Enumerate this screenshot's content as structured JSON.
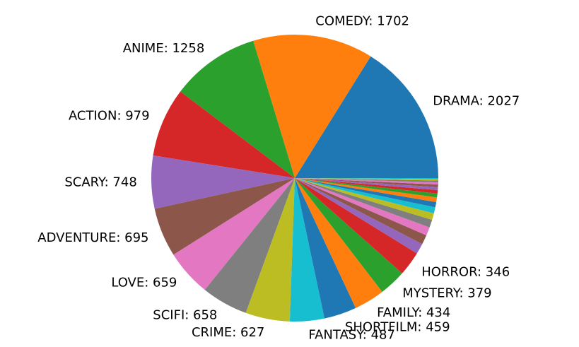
{
  "chart_data": {
    "type": "pie",
    "start_angle_deg": 0,
    "direction": "counterclockwise",
    "slices": [
      {
        "label": "DRAMA",
        "value": 2027,
        "color": "#1f77b4",
        "show_label": true
      },
      {
        "label": "COMEDY",
        "value": 1702,
        "color": "#ff7f0e",
        "show_label": true
      },
      {
        "label": "ANIME",
        "value": 1258,
        "color": "#2ca02c",
        "show_label": true
      },
      {
        "label": "ACTION",
        "value": 979,
        "color": "#d62728",
        "show_label": true
      },
      {
        "label": "SCARY",
        "value": 748,
        "color": "#9467bd",
        "show_label": true
      },
      {
        "label": "ADVENTURE",
        "value": 695,
        "color": "#8c564b",
        "show_label": true
      },
      {
        "label": "LOVE",
        "value": 659,
        "color": "#e377c2",
        "show_label": true
      },
      {
        "label": "SCIFI",
        "value": 658,
        "color": "#7f7f7f",
        "show_label": true
      },
      {
        "label": "CRIME",
        "value": 627,
        "color": "#bcbd22",
        "show_label": true
      },
      {
        "label": "FANTASY",
        "value": 487,
        "color": "#17becf",
        "show_label": true
      },
      {
        "label": "SHORTFILM",
        "value": 459,
        "color": "#1f77b4",
        "show_label": true
      },
      {
        "label": "FAMILY",
        "value": 434,
        "color": "#ff7f0e",
        "show_label": true
      },
      {
        "label": "MYSTERY",
        "value": 379,
        "color": "#2ca02c",
        "show_label": true
      },
      {
        "label": "HORROR",
        "value": 346,
        "color": "#d62728",
        "show_label": true
      },
      {
        "value": 150,
        "color": "#9467bd",
        "show_label": false
      },
      {
        "value": 135,
        "color": "#8c564b",
        "show_label": false
      },
      {
        "value": 120,
        "color": "#e377c2",
        "show_label": false
      },
      {
        "value": 110,
        "color": "#7f7f7f",
        "show_label": false
      },
      {
        "value": 95,
        "color": "#bcbd22",
        "show_label": false
      },
      {
        "value": 85,
        "color": "#17becf",
        "show_label": false
      },
      {
        "value": 75,
        "color": "#1f77b4",
        "show_label": false
      },
      {
        "value": 65,
        "color": "#ff7f0e",
        "show_label": false
      },
      {
        "value": 55,
        "color": "#2ca02c",
        "show_label": false
      },
      {
        "value": 48,
        "color": "#d62728",
        "show_label": false
      },
      {
        "value": 42,
        "color": "#9467bd",
        "show_label": false
      },
      {
        "value": 36,
        "color": "#8c564b",
        "show_label": false
      },
      {
        "value": 30,
        "color": "#e377c2",
        "show_label": false
      },
      {
        "value": 25,
        "color": "#7f7f7f",
        "show_label": false
      },
      {
        "value": 20,
        "color": "#bcbd22",
        "show_label": false
      },
      {
        "value": 15,
        "color": "#17becf",
        "show_label": false
      }
    ]
  }
}
